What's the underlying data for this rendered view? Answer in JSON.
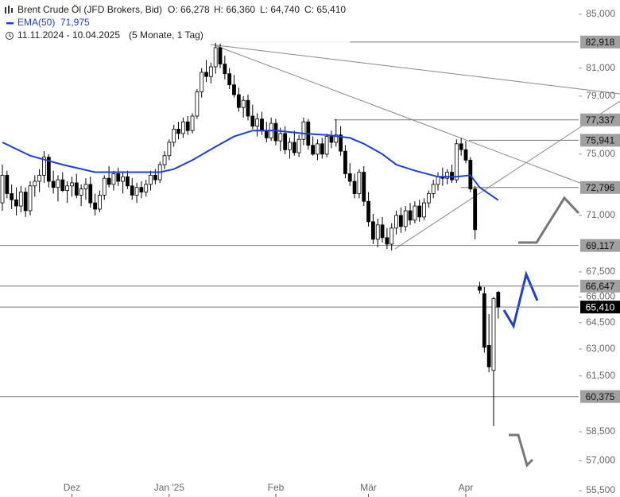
{
  "chart_data": {
    "type": "candlestick",
    "title": "Brent Crude Öl (JFD Brokers, Bid)",
    "ohlc_texts": [
      "O: 66,278",
      "H: 66,360",
      "L: 64,740",
      "C: 65,410"
    ],
    "ema": {
      "name": "EMA(50)",
      "value_label": "71,975",
      "color": "#1f3fd8",
      "x": [
        0,
        6,
        13,
        20,
        27,
        34,
        37,
        41,
        46,
        50,
        54,
        59,
        65,
        70,
        75,
        78,
        82,
        85,
        89,
        94,
        98,
        101,
        103,
        107
      ],
      "values": [
        75.8,
        74.9,
        74.3,
        73.8,
        73.8,
        73.8,
        74.0,
        74.6,
        75.5,
        76.2,
        76.6,
        76.6,
        76.4,
        76.3,
        76.1,
        75.7,
        75.0,
        74.3,
        73.9,
        73.5,
        73.5,
        73.6,
        72.8,
        71.975
      ]
    },
    "period": "11.11.2024 - 10.04.2025",
    "period_note": "(5 Monate, 1 Tag)",
    "open": [
      71.8,
      73.6,
      72.4,
      72.0,
      71.6,
      72.5,
      71.3,
      72.9,
      73.2,
      73.6,
      74.8,
      73.2,
      72.8,
      73.3,
      72.6,
      72.9,
      73.1,
      72.3,
      72.7,
      73.0,
      71.8,
      71.4,
      72.3,
      73.4,
      73.0,
      73.7,
      73.2,
      73.5,
      72.9,
      72.3,
      72.8,
      72.5,
      73.0,
      73.6,
      73.3,
      74.3,
      74.9,
      75.8,
      76.7,
      76.4,
      77.2,
      76.6,
      77.6,
      79.3,
      80.7,
      80.4,
      81.1,
      82.5,
      81.3,
      80.6,
      79.8,
      79.1,
      78.2,
      78.7,
      77.6,
      76.9,
      77.4,
      76.6,
      76.1,
      77.1,
      75.9,
      76.4,
      75.3,
      75.8,
      75.1,
      76.0,
      77.2,
      75.6,
      75.0,
      75.7,
      75.0,
      76.2,
      75.8,
      76.3,
      75.2,
      73.7,
      73.2,
      72.4,
      73.8,
      71.9,
      70.6,
      69.5,
      70.4,
      69.6,
      69.2,
      70.2,
      71.0,
      70.3,
      71.3,
      70.7,
      71.6,
      70.9,
      71.8,
      72.4,
      73.0,
      73.5,
      73.4,
      73.8,
      73.3,
      75.7,
      75.3,
      74.6,
      72.7,
      66.6,
      66.2,
      63.2,
      61.8,
      66.278
    ],
    "high": [
      74.3,
      73.9,
      73.0,
      72.8,
      72.9,
      72.8,
      73.2,
      73.6,
      74.0,
      75.2,
      75.0,
      73.9,
      73.6,
      73.8,
      73.2,
      73.5,
      73.7,
      73.0,
      73.4,
      73.5,
      72.4,
      72.6,
      73.6,
      74.2,
      73.9,
      74.1,
      73.8,
      73.9,
      73.4,
      73.1,
      73.2,
      73.3,
      73.9,
      74.0,
      74.5,
      75.2,
      76.0,
      77.0,
      77.2,
      77.5,
      77.6,
      77.8,
      79.5,
      81.0,
      81.6,
      81.4,
      82.9,
      82.8,
      81.9,
      81.0,
      80.5,
      79.6,
      79.0,
      79.1,
      78.4,
      77.8,
      77.9,
      77.2,
      77.5,
      77.4,
      76.8,
      76.9,
      76.1,
      76.6,
      76.3,
      77.5,
      77.4,
      76.2,
      76.0,
      76.1,
      76.4,
      76.6,
      77.4,
      76.9,
      75.6,
      74.4,
      73.7,
      74.0,
      74.2,
      72.5,
      71.1,
      70.8,
      70.9,
      70.2,
      70.5,
      71.3,
      71.5,
      71.6,
      71.8,
      71.9,
      72.0,
      72.1,
      72.6,
      73.3,
      73.8,
      74.1,
      74.0,
      74.3,
      76.0,
      76.1,
      75.9,
      74.8,
      72.9,
      66.9,
      66.6,
      65.0,
      66.0,
      66.36
    ],
    "low": [
      71.3,
      72.1,
      71.4,
      71.0,
      71.2,
      70.9,
      71.0,
      72.2,
      72.5,
      73.1,
      72.8,
      72.4,
      71.9,
      72.5,
      71.8,
      72.2,
      72.1,
      71.6,
      72.0,
      71.5,
      71.0,
      71.2,
      72.0,
      72.8,
      72.6,
      72.9,
      72.4,
      72.7,
      72.0,
      71.8,
      72.1,
      72.2,
      72.6,
      73.0,
      73.1,
      74.0,
      74.6,
      75.5,
      76.0,
      76.1,
      76.3,
      76.4,
      77.4,
      78.9,
      80.0,
      79.9,
      80.6,
      81.0,
      80.2,
      79.5,
      78.9,
      77.9,
      77.5,
      77.3,
      76.7,
      76.2,
      76.3,
      75.8,
      75.9,
      75.6,
      75.2,
      75.0,
      74.7,
      74.9,
      74.8,
      75.6,
      75.3,
      74.9,
      74.6,
      74.7,
      74.8,
      75.4,
      75.5,
      74.9,
      73.4,
      72.9,
      72.1,
      72.1,
      71.6,
      70.3,
      69.2,
      69.0,
      69.3,
      68.9,
      68.8,
      69.8,
      69.9,
      70.0,
      70.4,
      70.5,
      70.6,
      70.7,
      71.5,
      72.1,
      72.6,
      72.9,
      73.0,
      73.1,
      73.1,
      74.9,
      74.4,
      72.5,
      69.5,
      66.2,
      62.8,
      61.7,
      58.8,
      64.74
    ],
    "close": [
      73.6,
      72.4,
      72.0,
      71.6,
      72.5,
      71.3,
      72.9,
      73.2,
      73.6,
      74.8,
      73.2,
      72.8,
      73.3,
      72.6,
      72.9,
      73.1,
      72.3,
      72.7,
      73.0,
      71.8,
      71.4,
      72.3,
      73.4,
      73.0,
      73.7,
      73.2,
      73.5,
      72.9,
      72.3,
      72.8,
      72.5,
      73.0,
      73.6,
      73.3,
      74.3,
      74.9,
      75.8,
      76.7,
      76.4,
      77.2,
      76.6,
      77.6,
      79.3,
      80.7,
      80.4,
      81.1,
      82.5,
      81.3,
      80.6,
      79.8,
      79.1,
      78.2,
      78.7,
      77.6,
      76.9,
      77.4,
      76.6,
      76.1,
      77.1,
      75.9,
      76.4,
      75.3,
      75.8,
      75.1,
      76.0,
      77.2,
      75.6,
      75.0,
      75.7,
      75.0,
      76.2,
      75.8,
      76.3,
      75.2,
      73.7,
      73.2,
      72.4,
      73.8,
      71.9,
      70.6,
      69.5,
      70.4,
      69.6,
      69.2,
      70.2,
      71.0,
      70.3,
      71.3,
      70.7,
      71.6,
      70.9,
      71.8,
      72.4,
      73.0,
      73.5,
      73.4,
      73.8,
      73.3,
      75.7,
      75.3,
      74.6,
      72.7,
      70.1,
      66.4,
      63.1,
      62.0,
      65.9,
      65.41
    ],
    "xticks": [
      {
        "value": 15,
        "label": "Dez"
      },
      {
        "value": 36,
        "label": "Jan '25"
      },
      {
        "value": 59,
        "label": "Feb"
      },
      {
        "value": 79,
        "label": "Mär"
      },
      {
        "value": 100,
        "label": "Apr"
      }
    ],
    "log_scale": true,
    "ylim": [
      55.5,
      85
    ],
    "yticks": [
      {
        "value": 85,
        "label": "85,000"
      },
      {
        "value": 81,
        "label": "81,000"
      },
      {
        "value": 79,
        "label": "79,000"
      },
      {
        "value": 75,
        "label": "75,000"
      },
      {
        "value": 71,
        "label": "71,000"
      },
      {
        "value": 67.5,
        "label": "67,500"
      },
      {
        "value": 66,
        "label": "66,000"
      },
      {
        "value": 64.5,
        "label": "64,500"
      },
      {
        "value": 63,
        "label": "63,000"
      },
      {
        "value": 61.5,
        "label": "61,500"
      },
      {
        "value": 58.5,
        "label": "58,500"
      },
      {
        "value": 57,
        "label": "57,000"
      },
      {
        "value": 55.5,
        "label": "55,500"
      }
    ],
    "levels": [
      {
        "value": 82.918,
        "label": "82,918"
      },
      {
        "value": 77.337,
        "label": "77,337"
      },
      {
        "value": 75.941,
        "label": "75,941"
      },
      {
        "value": 72.796,
        "label": "72,796"
      },
      {
        "value": 69.117,
        "label": "69,117"
      },
      {
        "value": 66.647,
        "label": "66,647"
      },
      {
        "value": 60.375,
        "label": "60,375"
      }
    ],
    "last_price": {
      "value": 65.41,
      "label": "65,410"
    }
  }
}
